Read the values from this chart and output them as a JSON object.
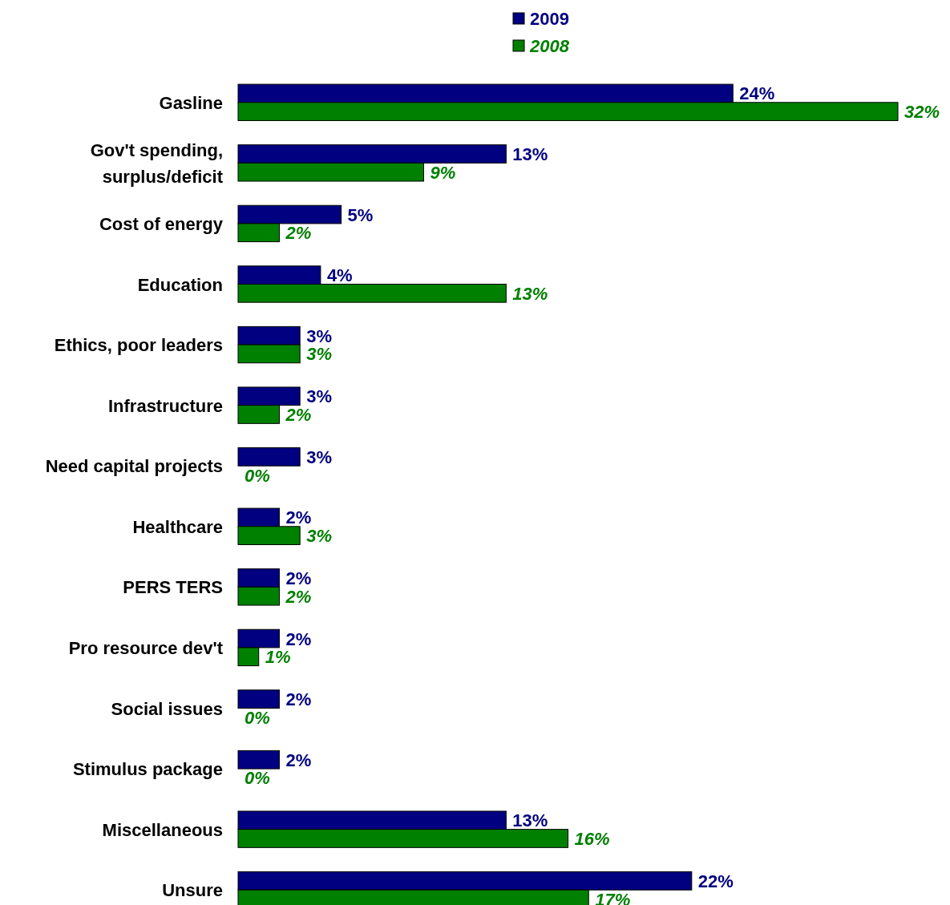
{
  "chart_data": {
    "type": "bar",
    "orientation": "horizontal",
    "legend": "top",
    "categories": [
      "Gasline",
      "Gov't spending, surplus/deficit",
      "Cost of energy",
      "Education",
      "Ethics, poor leaders",
      "Infrastructure",
      "Need capital projects",
      "Healthcare",
      "PERS TERS",
      "Pro resource dev't",
      "Social issues",
      "Stimulus package",
      "Miscellaneous",
      "Unsure"
    ],
    "series": [
      {
        "name": "2009",
        "color": "#000080",
        "values": [
          24,
          13,
          5,
          4,
          3,
          3,
          3,
          2,
          2,
          2,
          2,
          2,
          13,
          22
        ],
        "value_labels": [
          "24%",
          "13%",
          "5%",
          "4%",
          "3%",
          "3%",
          "3%",
          "2%",
          "2%",
          "2%",
          "2%",
          "2%",
          "13%",
          "22%"
        ]
      },
      {
        "name": "2008",
        "color": "#008000",
        "values": [
          32,
          9,
          2,
          13,
          3,
          2,
          0,
          3,
          2,
          1,
          0,
          0,
          16,
          17
        ],
        "value_labels": [
          "32%",
          "9%",
          "2%",
          "13%",
          "3%",
          "2%",
          "0%",
          "3%",
          "2%",
          "1%",
          "0%",
          "0%",
          "16%",
          "17%"
        ]
      }
    ]
  }
}
